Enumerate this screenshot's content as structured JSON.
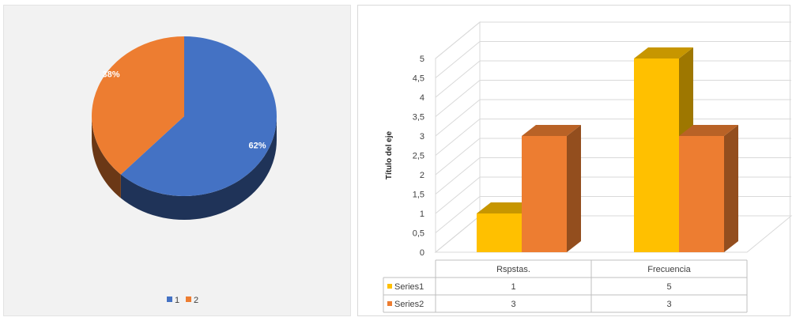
{
  "chart_data": [
    {
      "type": "pie",
      "categories": [
        "1",
        "2"
      ],
      "values": [
        62,
        38
      ],
      "data_labels": [
        "62%",
        "38%"
      ],
      "colors": [
        "#4472c4",
        "#ed7d31"
      ],
      "style": "3d",
      "legend": {
        "position": "bottom",
        "entries": [
          "1",
          "2"
        ]
      }
    },
    {
      "type": "bar",
      "style": "3d-clustered-column",
      "categories": [
        "Rspstas.",
        "Frecuencia"
      ],
      "series": [
        {
          "name": "Series1",
          "values": [
            1,
            5
          ],
          "color": "#ffc000"
        },
        {
          "name": "Series2",
          "values": [
            3,
            3
          ],
          "color": "#ed7d31"
        }
      ],
      "ylabel": "Título del eje",
      "ylim": [
        0,
        5
      ],
      "y_ticks": [
        "0",
        "0,5",
        "1",
        "1,5",
        "2",
        "2,5",
        "3",
        "3,5",
        "4",
        "4,5",
        "5"
      ],
      "grid": true,
      "data_table": true
    }
  ]
}
